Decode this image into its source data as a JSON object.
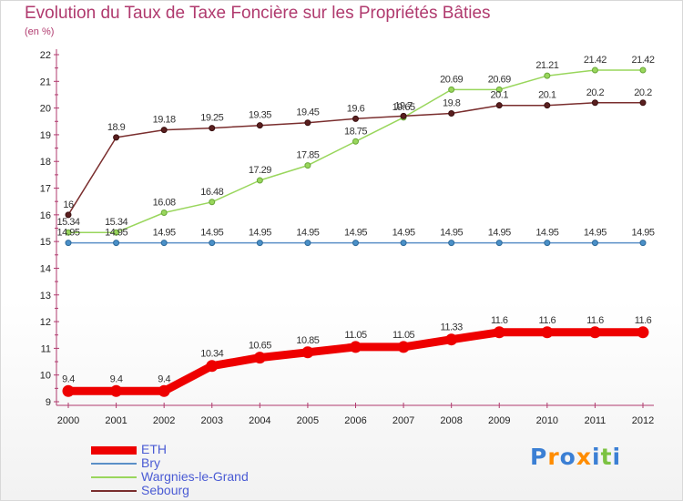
{
  "title": "Evolution du Taux de Taxe Foncière sur les Propriétés Bâties",
  "unit_label": "(en %)",
  "logo_text": "Proxiti",
  "chart_data": {
    "type": "line",
    "x": [
      "2000",
      "2001",
      "2002",
      "2003",
      "2004",
      "2005",
      "2006",
      "2007",
      "2008",
      "2009",
      "2010",
      "2011",
      "2012"
    ],
    "ylim": [
      9,
      22
    ],
    "yticks": [
      9,
      10,
      11,
      12,
      13,
      14,
      15,
      16,
      17,
      18,
      19,
      20,
      21,
      22
    ],
    "grid": false,
    "legend_position": "bottom-left",
    "series": [
      {
        "name": "ETH",
        "color": "#ee0000",
        "values": [
          9.4,
          9.4,
          9.4,
          10.34,
          10.65,
          10.85,
          11.05,
          11.05,
          11.33,
          11.6,
          11.6,
          11.6,
          11.6
        ],
        "labels": [
          "9.4",
          "9.4",
          "9.4",
          "10.34",
          "10.65",
          "10.85",
          "11.05",
          "11.05",
          "11.33",
          "11.6",
          "11.6",
          "11.6",
          "11.6"
        ]
      },
      {
        "name": "Bry",
        "color": "#5a8fc7",
        "values": [
          14.95,
          14.95,
          14.95,
          14.95,
          14.95,
          14.95,
          14.95,
          14.95,
          14.95,
          14.95,
          14.95,
          14.95,
          14.95
        ],
        "labels": [
          "14.95",
          "14.95",
          "14.95",
          "14.95",
          "14.95",
          "14.95",
          "14.95",
          "14.95",
          "14.95",
          "14.95",
          "14.95",
          "14.95",
          "14.95"
        ]
      },
      {
        "name": "Wargnies-le-Grand",
        "color": "#99d65c",
        "values": [
          15.34,
          15.34,
          16.08,
          16.48,
          17.29,
          17.85,
          18.75,
          19.65,
          20.69,
          20.69,
          21.21,
          21.42,
          21.42
        ],
        "labels": [
          "15.34",
          "15.34",
          "16.08",
          "16.48",
          "17.29",
          "17.85",
          "18.75",
          "19.65",
          "20.69",
          "20.69",
          "21.21",
          "21.42",
          "21.42"
        ]
      },
      {
        "name": "Sebourg",
        "color": "#7a2e2e",
        "values": [
          16,
          18.9,
          19.18,
          19.25,
          19.35,
          19.45,
          19.6,
          19.7,
          19.8,
          20.1,
          20.1,
          20.2,
          20.2
        ],
        "labels": [
          "16",
          "18.9",
          "19.18",
          "19.25",
          "19.35",
          "19.45",
          "19.6",
          "19.7",
          "19.8",
          "20.1",
          "20.1",
          "20.2",
          "20.2"
        ]
      }
    ]
  },
  "colors": {
    "title": "#b03a6e",
    "axis": "#b03a6e",
    "tick_text": "#222222",
    "legend_text": "#4a5bd4",
    "logo": [
      "#3b7fd4",
      "#ff8c00",
      "#3b7fd4",
      "#ff8c00",
      "#3b7fd4",
      "#7cc242",
      "#3b7fd4"
    ]
  }
}
